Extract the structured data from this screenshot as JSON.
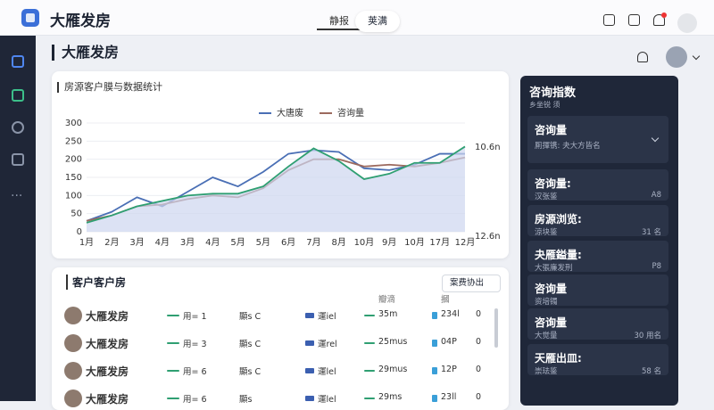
{
  "topbar": {
    "title": "大雁发房",
    "tabs": [
      "静报",
      "荚满"
    ]
  },
  "page": {
    "title": "大雁发房"
  },
  "chart_data": {
    "type": "line",
    "title": "房源客户膜与数据统计",
    "categories": [
      "1月",
      "2月",
      "3月",
      "4月",
      "3月",
      "4月",
      "5月",
      "5月",
      "6月",
      "7月",
      "8月",
      "10月",
      "9月",
      "10月",
      "17月",
      "12月"
    ],
    "series": [
      {
        "name": "大唐废",
        "color": "#4a6fb5",
        "values": [
          30,
          55,
          95,
          70,
          110,
          150,
          125,
          165,
          215,
          225,
          220,
          175,
          170,
          185,
          215,
          215
        ]
      },
      {
        "name": "咨询量",
        "color": "#9c6a5e",
        "values": [
          30,
          45,
          70,
          75,
          90,
          100,
          95,
          120,
          170,
          200,
          200,
          180,
          185,
          180,
          190,
          205
        ]
      },
      {
        "color": "#2f9f72",
        "fill": "#cdd6f0",
        "values": [
          25,
          45,
          70,
          85,
          100,
          105,
          105,
          125,
          180,
          230,
          195,
          145,
          160,
          190,
          190,
          235
        ]
      }
    ],
    "ylim": [
      0,
      300
    ],
    "yticks": [
      0,
      50,
      100,
      150,
      200,
      250,
      300
    ],
    "grid": true,
    "annotations": [
      "10.6n",
      "12.6n"
    ]
  },
  "table": {
    "title": "客户客户房",
    "filter": "案费协出",
    "headers": [
      "瓣滴",
      "摑"
    ],
    "rows": [
      [
        "大雁发房",
        "用= 1",
        "顯s C",
        "運iel",
        "35m",
        "234l",
        "0"
      ],
      [
        "大雁发房",
        "用= 3",
        "顯s C",
        "運rel",
        "25mus",
        "04P",
        "0"
      ],
      [
        "大雁发房",
        "用= 6",
        "顯s C",
        "運lel",
        "29mus",
        "12P",
        "0"
      ],
      [
        "大雁发房",
        "用= 6",
        "顯s",
        "運lel",
        "29ms",
        "23ll",
        "0"
      ]
    ]
  },
  "panel": {
    "title": "咨询指数",
    "subtitle": "乡坐锐 须",
    "cards": [
      {
        "label": "咨询量",
        "sub": "厠揮镌: 夬大方皆名"
      },
      {
        "label": "咨询量:",
        "sub": "汉张鉴",
        "value": "A8"
      },
      {
        "label": "房源浏览:",
        "sub": "涼块鉴",
        "value": "31 名"
      },
      {
        "label": "夬雁鎰量:",
        "sub": "大張廉发刑",
        "value": "P8"
      },
      {
        "label": "咨询量",
        "sub": "资培镯"
      },
      {
        "label": "咨询量",
        "sub": "大觉量",
        "value": "30 用名"
      },
      {
        "label": "天雁出皿:",
        "sub": "崇珐鉴",
        "value": "58 名"
      }
    ]
  }
}
